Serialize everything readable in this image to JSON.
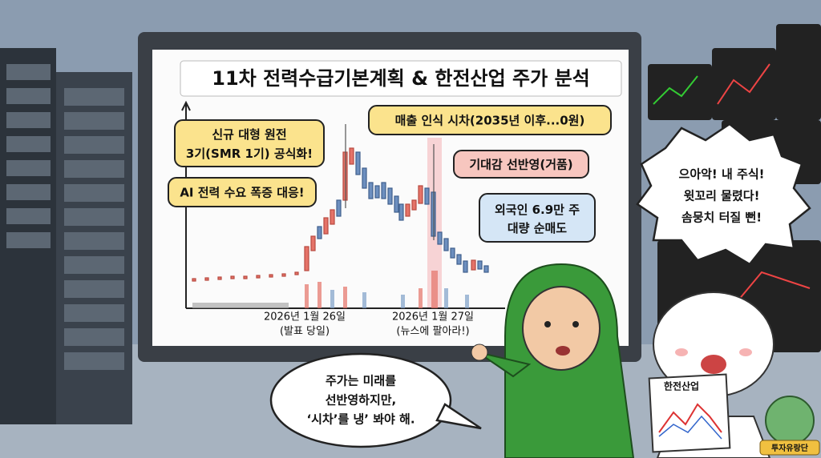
{
  "title": "11차 전력수급기본계획 & 한전산업 주가 분석",
  "callouts": {
    "nuclear": [
      "신규 대형 원전",
      "3기(SMR 1기) 공식화!"
    ],
    "ai": "AI 전력 수요 폭증 대응!",
    "revenue_lag": "매출 인식 시차(2035년 이후...0원)",
    "bubble": "기대감 선반영(거품)",
    "foreign": [
      "외국인 6.9만 주",
      "대량 순매도"
    ]
  },
  "date_labels": [
    [
      "2026년 1월 26일",
      "(발표 당일)"
    ],
    [
      "2026년 1월 27일",
      "(뉴스에 팔아라!)"
    ]
  ],
  "shout": [
    "으아악! 내 주식!",
    "윗꼬리 물렸다!",
    "솜뭉치 터질 뻔!"
  ],
  "speech": [
    "주가는 미래를",
    "선반영하지만,",
    "‘시차’를 냉’ 봐야 해."
  ],
  "paper_title": "한전산업",
  "badge": "투자유랑단"
}
